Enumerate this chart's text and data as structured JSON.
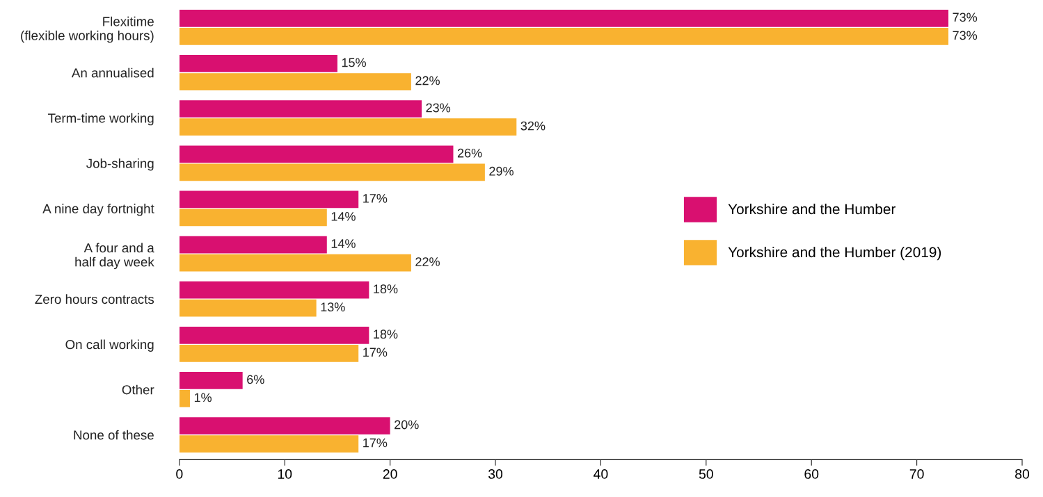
{
  "chart_data": {
    "type": "bar",
    "orientation": "horizontal",
    "categories": [
      "Flexitime\n(flexible working hours)",
      "An annualised",
      "Term-time working",
      "Job-sharing",
      "A nine day fortnight",
      "A four and a\nhalf day week",
      "Zero hours contracts",
      "On call working",
      "Other",
      "None of these"
    ],
    "series": [
      {
        "name": "Yorkshire and the Humber",
        "color": "#d91070",
        "values": [
          73,
          15,
          23,
          26,
          17,
          14,
          18,
          18,
          6,
          20
        ],
        "value_labels": [
          "73%",
          "15%",
          "23%",
          "26%",
          "17%",
          "14%",
          "18%",
          "18%",
          "6%",
          "20%"
        ]
      },
      {
        "name": "Yorkshire and the Humber (2019)",
        "color": "#f9b230",
        "values": [
          73,
          22,
          32,
          29,
          14,
          22,
          13,
          17,
          1,
          17
        ],
        "value_labels": [
          "73%",
          "22%",
          "32%",
          "29%",
          "14%",
          "22%",
          "13%",
          "17%",
          "1%",
          "17%"
        ]
      }
    ],
    "xlim": [
      0,
      80
    ],
    "xticks": [
      0,
      10,
      20,
      30,
      40,
      50,
      60,
      70,
      80
    ],
    "grid": false,
    "legend": "right"
  }
}
